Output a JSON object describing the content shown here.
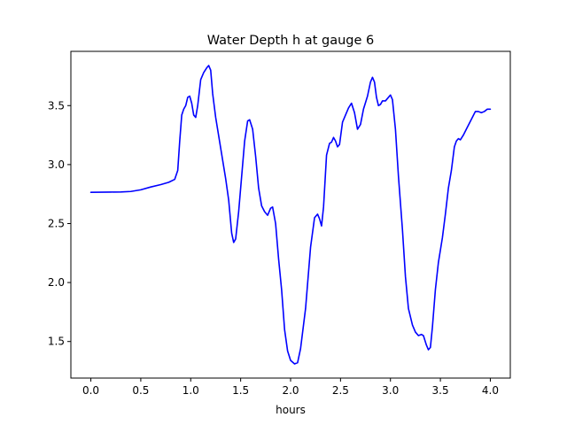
{
  "chart_data": {
    "type": "line",
    "title": "Water Depth h at gauge 6",
    "xlabel": "hours",
    "ylabel": "",
    "xlim": [
      -0.2,
      4.2
    ],
    "ylim": [
      1.19,
      3.96
    ],
    "xticks": [
      0.0,
      0.5,
      1.0,
      1.5,
      2.0,
      2.5,
      3.0,
      3.5,
      4.0
    ],
    "xtick_labels": [
      "0.0",
      "0.5",
      "1.0",
      "1.5",
      "2.0",
      "2.5",
      "3.0",
      "3.5",
      "4.0"
    ],
    "yticks": [
      1.5,
      2.0,
      2.5,
      3.0,
      3.5
    ],
    "ytick_labels": [
      "1.5",
      "2.0",
      "2.5",
      "3.0",
      "3.5"
    ],
    "grid": false,
    "line_color": "#0000ff",
    "series": [
      {
        "values": [
          [
            0.0,
            2.765
          ],
          [
            0.1,
            2.766
          ],
          [
            0.2,
            2.767
          ],
          [
            0.3,
            2.768
          ],
          [
            0.4,
            2.772
          ],
          [
            0.5,
            2.786
          ],
          [
            0.6,
            2.81
          ],
          [
            0.7,
            2.83
          ],
          [
            0.78,
            2.85
          ],
          [
            0.84,
            2.875
          ],
          [
            0.87,
            2.95
          ],
          [
            0.89,
            3.2
          ],
          [
            0.91,
            3.42
          ],
          [
            0.93,
            3.47
          ],
          [
            0.95,
            3.5
          ],
          [
            0.97,
            3.57
          ],
          [
            0.99,
            3.58
          ],
          [
            1.01,
            3.52
          ],
          [
            1.03,
            3.42
          ],
          [
            1.05,
            3.4
          ],
          [
            1.07,
            3.5
          ],
          [
            1.1,
            3.72
          ],
          [
            1.13,
            3.78
          ],
          [
            1.16,
            3.82
          ],
          [
            1.18,
            3.84
          ],
          [
            1.2,
            3.8
          ],
          [
            1.22,
            3.6
          ],
          [
            1.25,
            3.4
          ],
          [
            1.3,
            3.14
          ],
          [
            1.35,
            2.88
          ],
          [
            1.38,
            2.7
          ],
          [
            1.41,
            2.42
          ],
          [
            1.43,
            2.34
          ],
          [
            1.45,
            2.37
          ],
          [
            1.48,
            2.6
          ],
          [
            1.51,
            2.9
          ],
          [
            1.54,
            3.2
          ],
          [
            1.57,
            3.37
          ],
          [
            1.59,
            3.38
          ],
          [
            1.62,
            3.3
          ],
          [
            1.65,
            3.07
          ],
          [
            1.68,
            2.8
          ],
          [
            1.71,
            2.65
          ],
          [
            1.74,
            2.6
          ],
          [
            1.77,
            2.57
          ],
          [
            1.8,
            2.63
          ],
          [
            1.82,
            2.64
          ],
          [
            1.85,
            2.5
          ],
          [
            1.88,
            2.2
          ],
          [
            1.91,
            1.94
          ],
          [
            1.94,
            1.6
          ],
          [
            1.97,
            1.42
          ],
          [
            2.0,
            1.34
          ],
          [
            2.04,
            1.31
          ],
          [
            2.07,
            1.32
          ],
          [
            2.1,
            1.44
          ],
          [
            2.15,
            1.78
          ],
          [
            2.2,
            2.3
          ],
          [
            2.24,
            2.55
          ],
          [
            2.27,
            2.58
          ],
          [
            2.29,
            2.54
          ],
          [
            2.31,
            2.48
          ],
          [
            2.33,
            2.64
          ],
          [
            2.36,
            3.08
          ],
          [
            2.39,
            3.18
          ],
          [
            2.41,
            3.19
          ],
          [
            2.43,
            3.23
          ],
          [
            2.45,
            3.2
          ],
          [
            2.47,
            3.15
          ],
          [
            2.49,
            3.17
          ],
          [
            2.52,
            3.36
          ],
          [
            2.55,
            3.42
          ],
          [
            2.58,
            3.48
          ],
          [
            2.61,
            3.52
          ],
          [
            2.64,
            3.44
          ],
          [
            2.67,
            3.3
          ],
          [
            2.7,
            3.34
          ],
          [
            2.73,
            3.47
          ],
          [
            2.77,
            3.58
          ],
          [
            2.8,
            3.7
          ],
          [
            2.82,
            3.74
          ],
          [
            2.84,
            3.7
          ],
          [
            2.86,
            3.57
          ],
          [
            2.88,
            3.5
          ],
          [
            2.9,
            3.51
          ],
          [
            2.92,
            3.54
          ],
          [
            2.95,
            3.54
          ],
          [
            2.98,
            3.57
          ],
          [
            3.0,
            3.59
          ],
          [
            3.02,
            3.55
          ],
          [
            3.05,
            3.3
          ],
          [
            3.08,
            2.9
          ],
          [
            3.12,
            2.45
          ],
          [
            3.15,
            2.05
          ],
          [
            3.18,
            1.78
          ],
          [
            3.22,
            1.64
          ],
          [
            3.25,
            1.58
          ],
          [
            3.28,
            1.55
          ],
          [
            3.31,
            1.56
          ],
          [
            3.33,
            1.55
          ],
          [
            3.36,
            1.47
          ],
          [
            3.38,
            1.43
          ],
          [
            3.4,
            1.45
          ],
          [
            3.42,
            1.62
          ],
          [
            3.45,
            1.94
          ],
          [
            3.48,
            2.17
          ],
          [
            3.52,
            2.38
          ],
          [
            3.55,
            2.58
          ],
          [
            3.58,
            2.8
          ],
          [
            3.61,
            2.95
          ],
          [
            3.64,
            3.15
          ],
          [
            3.66,
            3.2
          ],
          [
            3.68,
            3.22
          ],
          [
            3.7,
            3.21
          ],
          [
            3.73,
            3.25
          ],
          [
            3.76,
            3.3
          ],
          [
            3.79,
            3.35
          ],
          [
            3.82,
            3.4
          ],
          [
            3.85,
            3.45
          ],
          [
            3.88,
            3.45
          ],
          [
            3.91,
            3.44
          ],
          [
            3.94,
            3.45
          ],
          [
            3.97,
            3.47
          ],
          [
            4.0,
            3.47
          ]
        ]
      }
    ]
  }
}
